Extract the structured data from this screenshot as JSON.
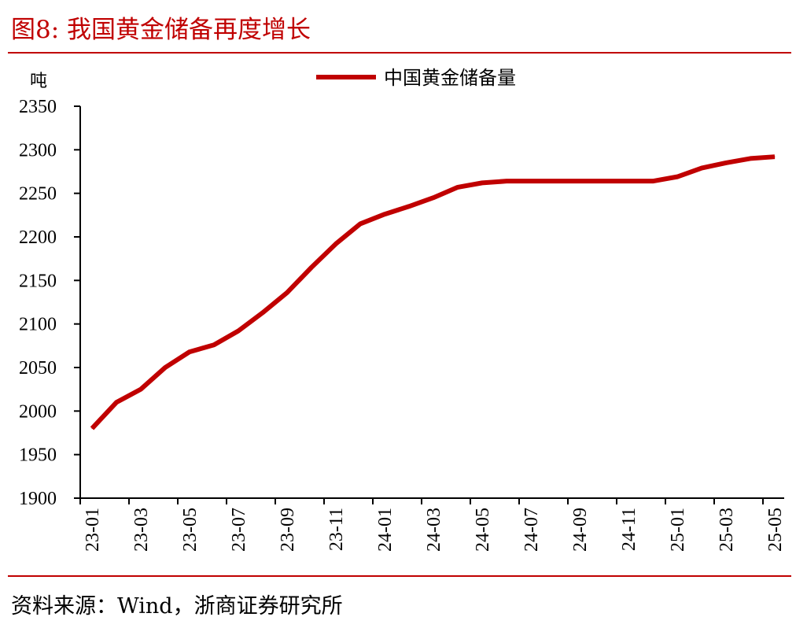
{
  "figure": {
    "title": "图8:   我国黄金储备再度增长",
    "source": "资料来源：Wind，浙商证券研究所"
  },
  "colors": {
    "accent": "#c00000",
    "text": "#000000",
    "axis": "#000000"
  },
  "chart_data": {
    "type": "line",
    "ylabel": "吨",
    "xlabel": "",
    "ylim": [
      1900,
      2350
    ],
    "yticks": [
      1900,
      1950,
      2000,
      2050,
      2100,
      2150,
      2200,
      2250,
      2300,
      2350
    ],
    "x_tick_labels": [
      "23-01",
      "23-03",
      "23-05",
      "23-07",
      "23-09",
      "23-11",
      "24-01",
      "24-03",
      "24-05",
      "24-07",
      "24-09",
      "24-11",
      "25-01",
      "25-03",
      "25-05"
    ],
    "categories": [
      "23-01",
      "23-02",
      "23-03",
      "23-04",
      "23-05",
      "23-06",
      "23-07",
      "23-08",
      "23-09",
      "23-10",
      "23-11",
      "23-12",
      "24-01",
      "24-02",
      "24-03",
      "24-04",
      "24-05",
      "24-06",
      "24-07",
      "24-08",
      "24-09",
      "24-10",
      "24-11",
      "24-12",
      "25-01",
      "25-02",
      "25-03",
      "25-04",
      "25-05"
    ],
    "legend_position": "top-center",
    "grid": false,
    "series": [
      {
        "name": "中国黄金储备量",
        "color": "#c00000",
        "values": [
          1980,
          2010,
          2025,
          2050,
          2068,
          2076,
          2092,
          2113,
          2136,
          2165,
          2192,
          2215,
          2226,
          2235,
          2245,
          2257,
          2262,
          2264,
          2264,
          2264,
          2264,
          2264,
          2264,
          2264,
          2269,
          2279,
          2285,
          2290,
          2292
        ]
      }
    ]
  }
}
